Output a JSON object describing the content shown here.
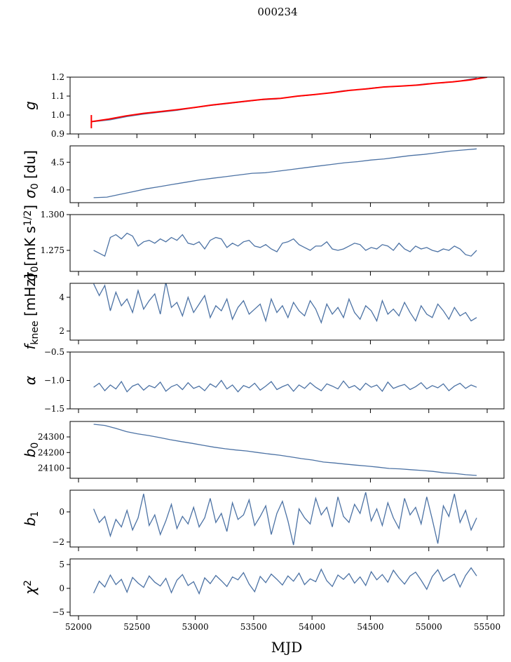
{
  "chart_data": {
    "type": "line",
    "title": "000234",
    "xlabel": "MJD",
    "xlim": [
      51928,
      55644
    ],
    "xticks": [
      52000,
      52500,
      53000,
      53500,
      54000,
      54500,
      55000,
      55500
    ],
    "xtick_labels": [
      "52000",
      "52500",
      "53000",
      "53500",
      "54000",
      "54500",
      "55000",
      "55500"
    ],
    "line_color": "#4c72a4",
    "fit_color": "#ff0000",
    "panels": [
      {
        "id": "g",
        "ylabel": [
          {
            "t": "g",
            "s": "it"
          }
        ],
        "ylim": [
          0.9,
          1.2
        ],
        "yticks": [
          0.9,
          1.0,
          1.1,
          1.2
        ],
        "ytick_labels": [
          "0.9",
          "1.0",
          "1.1",
          "1.2"
        ],
        "series": [
          {
            "name": "g",
            "color": "#4c72a4",
            "x_range": [
              52130,
              55410
            ],
            "values": [
              0.965,
              0.975,
              0.992,
              1.005,
              1.015,
              1.025,
              1.038,
              1.05,
              1.06,
              1.07,
              1.08,
              1.085,
              1.097,
              1.105,
              1.115,
              1.128,
              1.135,
              1.145,
              1.15,
              1.155,
              1.165,
              1.17,
              1.18,
              1.195
            ]
          },
          {
            "name": "g-fit",
            "color": "#ff0000",
            "x_range": [
              52110,
              55500
            ],
            "values": [
              0.965,
              0.978,
              0.995,
              1.008,
              1.018,
              1.028,
              1.04,
              1.053,
              1.063,
              1.073,
              1.083,
              1.088,
              1.1,
              1.108,
              1.118,
              1.13,
              1.138,
              1.148,
              1.153,
              1.158,
              1.168,
              1.175,
              1.185,
              1.2
            ],
            "spike": {
              "x": 52110,
              "range": [
                0.93,
                1.0
              ]
            }
          }
        ]
      },
      {
        "id": "sigma0-du",
        "ylabel": [
          {
            "t": "σ",
            "s": "it"
          },
          {
            "t": "0",
            "s": "sub"
          },
          {
            "t": " [du]",
            "s": ""
          }
        ],
        "ylim": [
          3.77,
          4.795
        ],
        "yticks": [
          4.0,
          4.5
        ],
        "ytick_labels": [
          "4.0",
          "4.5"
        ],
        "series": [
          {
            "name": "sigma0",
            "color": "#4c72a4",
            "x_range": [
              52130,
              55410
            ],
            "values": [
              3.86,
              3.87,
              3.92,
              3.97,
              4.02,
              4.06,
              4.1,
              4.14,
              4.18,
              4.21,
              4.24,
              4.27,
              4.3,
              4.31,
              4.34,
              4.37,
              4.4,
              4.43,
              4.46,
              4.49,
              4.51,
              4.54,
              4.56,
              4.59,
              4.62,
              4.64,
              4.67,
              4.7,
              4.72,
              4.74
            ]
          }
        ]
      },
      {
        "id": "sigma0-mk",
        "ylabel": [
          {
            "t": "σ",
            "s": "it"
          },
          {
            "t": "0",
            "s": "sub"
          },
          {
            "t": "[mK s",
            "s": ""
          },
          {
            "t": "1/2",
            "s": "sup"
          },
          {
            "t": "]",
            "s": ""
          }
        ],
        "ylim": [
          1.2603,
          1.3
        ],
        "yticks": [
          1.275,
          1.3
        ],
        "ytick_labels": [
          "1.275",
          "1.300"
        ],
        "series": [
          {
            "name": "sigma0-white",
            "color": "#4c72a4",
            "x_range": [
              52130,
              55410
            ],
            "values": [
              1.275,
              1.273,
              1.271,
              1.284,
              1.286,
              1.283,
              1.287,
              1.285,
              1.278,
              1.281,
              1.282,
              1.28,
              1.283,
              1.281,
              1.284,
              1.282,
              1.286,
              1.28,
              1.279,
              1.281,
              1.276,
              1.282,
              1.284,
              1.283,
              1.277,
              1.28,
              1.278,
              1.281,
              1.282,
              1.278,
              1.277,
              1.279,
              1.276,
              1.274,
              1.28,
              1.281,
              1.283,
              1.279,
              1.277,
              1.275,
              1.278,
              1.278,
              1.281,
              1.276,
              1.275,
              1.276,
              1.278,
              1.28,
              1.279,
              1.275,
              1.277,
              1.276,
              1.279,
              1.278,
              1.275,
              1.28,
              1.276,
              1.274,
              1.278,
              1.276,
              1.277,
              1.275,
              1.274,
              1.276,
              1.275,
              1.278,
              1.276,
              1.272,
              1.271,
              1.275
            ]
          }
        ]
      },
      {
        "id": "fknee",
        "ylabel": [
          {
            "t": "f",
            "s": "it"
          },
          {
            "t": "knee",
            "s": "sub"
          },
          {
            "t": " [mHz]",
            "s": ""
          }
        ],
        "ylim": [
          1.46,
          4.83
        ],
        "yticks": [
          2,
          4
        ],
        "ytick_labels": [
          "2",
          "4"
        ],
        "series": [
          {
            "name": "fknee",
            "color": "#4c72a4",
            "x_range": [
              52130,
              55410
            ],
            "values": [
              4.8,
              4.1,
              4.7,
              3.2,
              4.3,
              3.5,
              3.9,
              3.1,
              4.4,
              3.3,
              3.8,
              4.2,
              3.0,
              4.9,
              3.4,
              3.7,
              2.9,
              4.0,
              3.1,
              3.6,
              4.1,
              2.8,
              3.5,
              3.2,
              3.9,
              2.7,
              3.4,
              3.8,
              3.0,
              3.3,
              3.6,
              2.6,
              3.9,
              3.1,
              3.5,
              2.8,
              3.7,
              3.2,
              2.9,
              3.8,
              3.3,
              2.5,
              3.6,
              3.0,
              3.4,
              2.8,
              3.9,
              3.1,
              2.7,
              3.5,
              3.2,
              2.6,
              3.8,
              3.0,
              3.3,
              2.9,
              3.7,
              3.1,
              2.6,
              3.5,
              3.0,
              2.8,
              3.6,
              3.2,
              2.7,
              3.4,
              2.9,
              3.1,
              2.6,
              2.8
            ]
          }
        ]
      },
      {
        "id": "alpha",
        "ylabel": [
          {
            "t": "α",
            "s": "it"
          }
        ],
        "ylim": [
          -1.5,
          -0.5
        ],
        "yticks": [
          -1.5,
          -1.0,
          -0.5
        ],
        "ytick_labels": [
          "−1.5",
          "−1.0",
          "−0.5"
        ],
        "series": [
          {
            "name": "alpha",
            "color": "#4c72a4",
            "x_range": [
              52130,
              55410
            ],
            "values": [
              -1.12,
              -1.05,
              -1.18,
              -1.08,
              -1.15,
              -1.02,
              -1.2,
              -1.1,
              -1.06,
              -1.17,
              -1.09,
              -1.13,
              -1.03,
              -1.19,
              -1.11,
              -1.07,
              -1.16,
              -1.04,
              -1.14,
              -1.1,
              -1.18,
              -1.06,
              -1.12,
              -1.0,
              -1.15,
              -1.08,
              -1.2,
              -1.09,
              -1.13,
              -1.05,
              -1.17,
              -1.1,
              -1.02,
              -1.16,
              -1.11,
              -1.07,
              -1.19,
              -1.08,
              -1.14,
              -1.04,
              -1.12,
              -1.18,
              -1.06,
              -1.1,
              -1.15,
              -1.01,
              -1.13,
              -1.09,
              -1.17,
              -1.05,
              -1.12,
              -1.08,
              -1.19,
              -1.03,
              -1.14,
              -1.1,
              -1.07,
              -1.16,
              -1.11,
              -1.04,
              -1.15,
              -1.09,
              -1.13,
              -1.06,
              -1.18,
              -1.1,
              -1.05,
              -1.14,
              -1.08,
              -1.12
            ]
          }
        ]
      },
      {
        "id": "b0",
        "ylabel": [
          {
            "t": "b",
            "s": "it"
          },
          {
            "t": "0",
            "s": "sub"
          }
        ],
        "ylim": [
          24035,
          24399
        ],
        "yticks": [
          24100,
          24200,
          24300
        ],
        "ytick_labels": [
          "24100",
          "24200",
          "24300"
        ],
        "series": [
          {
            "name": "b0",
            "color": "#4c72a4",
            "x_range": [
              52130,
              55410
            ],
            "values": [
              24381,
              24374,
              24355,
              24334,
              24320,
              24309,
              24296,
              24282,
              24270,
              24259,
              24246,
              24234,
              24224,
              24216,
              24210,
              24200,
              24191,
              24183,
              24172,
              24161,
              24152,
              24139,
              24133,
              24126,
              24119,
              24113,
              24106,
              24098,
              24095,
              24090,
              24085,
              24079,
              24070,
              24066,
              24058,
              24053
            ]
          }
        ]
      },
      {
        "id": "b1",
        "ylabel": [
          {
            "t": "b",
            "s": "it"
          },
          {
            "t": "1",
            "s": "sub"
          }
        ],
        "ylim": [
          -2.33,
          1.44
        ],
        "yticks": [
          -2,
          0
        ],
        "ytick_labels": [
          "−2",
          "0"
        ],
        "series": [
          {
            "name": "b1",
            "color": "#4c72a4",
            "x_range": [
              52130,
              55410
            ],
            "values": [
              0.2,
              -0.7,
              -0.3,
              -1.6,
              -0.5,
              -1.0,
              0.1,
              -1.2,
              -0.4,
              1.2,
              -0.9,
              -0.2,
              -1.5,
              -0.6,
              0.5,
              -1.1,
              -0.3,
              -0.8,
              0.3,
              -1.0,
              -0.4,
              0.9,
              -0.7,
              -0.1,
              -1.3,
              0.6,
              -0.5,
              -0.2,
              0.8,
              -0.9,
              -0.3,
              0.4,
              -1.5,
              -0.1,
              0.7,
              -0.6,
              -2.2,
              0.2,
              -0.4,
              -0.8,
              0.9,
              -0.2,
              0.3,
              -1.0,
              1.0,
              -0.3,
              -0.7,
              0.5,
              -0.1,
              1.3,
              -0.6,
              0.2,
              -0.9,
              0.6,
              -0.4,
              -1.1,
              0.9,
              -0.2,
              0.3,
              -0.8,
              1.0,
              -0.5,
              -2.1,
              0.4,
              -0.3,
              1.2,
              -0.7,
              0.1,
              -1.2,
              -0.4
            ]
          }
        ]
      },
      {
        "id": "chi2",
        "ylabel": [
          {
            "t": "χ",
            "s": "it"
          },
          {
            "t": "2",
            "s": "sup"
          }
        ],
        "ylim": [
          -5.74,
          6.18
        ],
        "yticks": [
          -5,
          0,
          5
        ],
        "ytick_labels": [
          "−5",
          "0",
          "5"
        ],
        "series": [
          {
            "name": "chi2",
            "color": "#4c72a4",
            "x_range": [
              52130,
              55410
            ],
            "values": [
              -1.0,
              1.5,
              0.3,
              2.8,
              0.8,
              1.9,
              -0.8,
              2.3,
              1.1,
              0.2,
              2.6,
              1.3,
              0.5,
              2.1,
              -0.9,
              1.7,
              2.9,
              0.6,
              1.4,
              -1.1,
              2.2,
              1.0,
              2.7,
              1.6,
              0.4,
              2.4,
              1.8,
              3.3,
              0.9,
              -0.7,
              2.5,
              1.2,
              3.0,
              1.9,
              0.7,
              2.6,
              1.5,
              3.2,
              0.8,
              2.0,
              1.4,
              4.0,
              1.6,
              0.4,
              2.8,
              1.9,
              3.1,
              1.1,
              2.4,
              0.6,
              3.5,
              1.8,
              2.9,
              1.3,
              3.8,
              2.2,
              0.9,
              2.6,
              3.4,
              1.7,
              -0.2,
              2.5,
              3.9,
              1.5,
              2.3,
              3.0,
              0.3,
              2.7,
              4.3,
              2.6
            ]
          }
        ]
      }
    ]
  }
}
